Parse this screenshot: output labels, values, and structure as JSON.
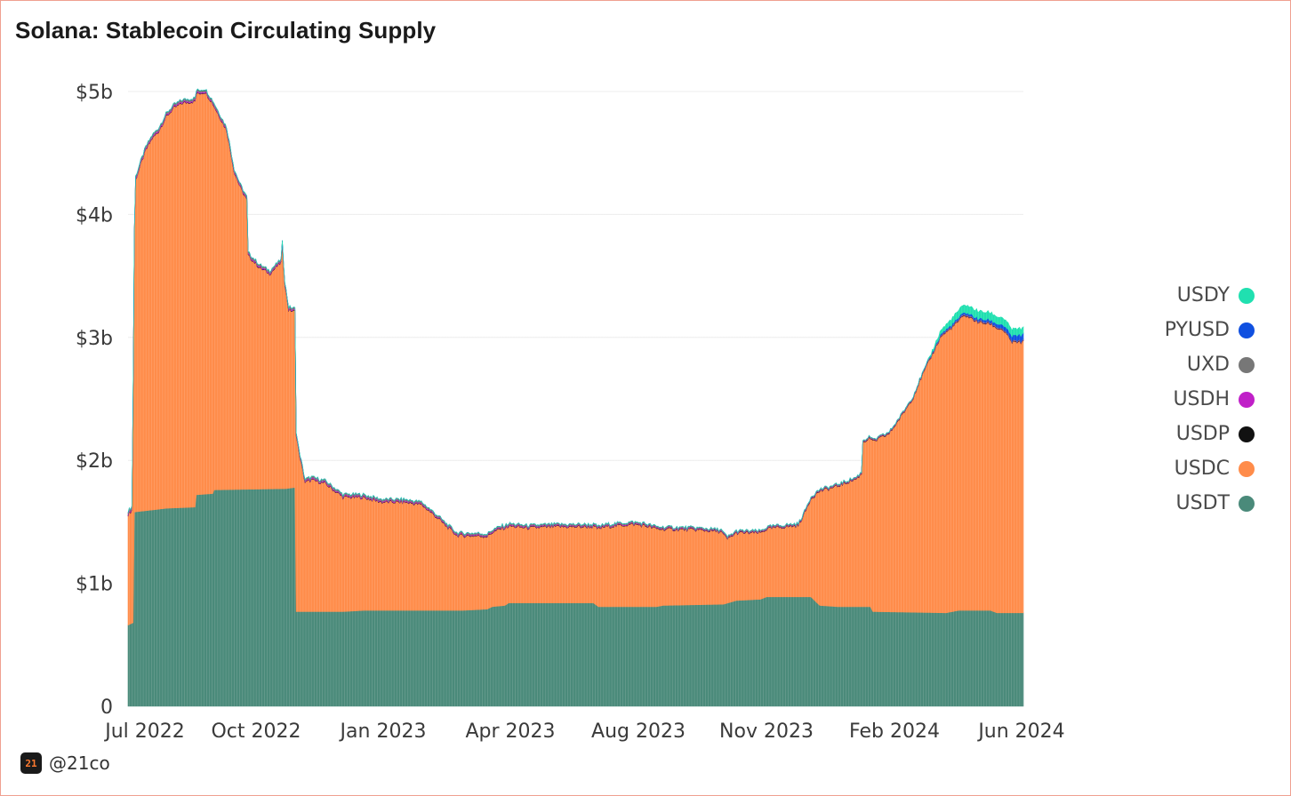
{
  "title": "Solana: Stablecoin Circulating Supply",
  "footer": {
    "logo_text": "21",
    "handle": "@21co"
  },
  "chart_data": {
    "type": "area",
    "stacked": true,
    "title": "Solana: Stablecoin Circulating Supply",
    "xlabel": "",
    "ylabel": "",
    "ylim": [
      0,
      5
    ],
    "y_unit": "billions USD",
    "y_ticks": [
      {
        "value": 0,
        "label": "0"
      },
      {
        "value": 1,
        "label": "$1b"
      },
      {
        "value": 2,
        "label": "$2b"
      },
      {
        "value": 3,
        "label": "$3b"
      },
      {
        "value": 4,
        "label": "$4b"
      },
      {
        "value": 5,
        "label": "$5b"
      }
    ],
    "x_ticks": [
      "Jul 2022",
      "Oct 2022",
      "Jan 2023",
      "Apr 2023",
      "Aug 2023",
      "Nov 2023",
      "Feb 2024",
      "Jun 2024"
    ],
    "grid": "horizontal",
    "legend_position": "right",
    "series": [
      {
        "name": "USDT",
        "color": "#4a8a7a",
        "points": [
          [
            "2022-06-28",
            0.66
          ],
          [
            "2022-07-02",
            0.68
          ],
          [
            "2022-07-03",
            1.58
          ],
          [
            "2022-07-20",
            1.6
          ],
          [
            "2022-07-28",
            1.61
          ],
          [
            "2022-08-20",
            1.62
          ],
          [
            "2022-08-21",
            1.72
          ],
          [
            "2022-09-03",
            1.73
          ],
          [
            "2022-09-04",
            1.76
          ],
          [
            "2022-10-31",
            1.77
          ],
          [
            "2022-11-07",
            1.78
          ],
          [
            "2022-11-08",
            0.77
          ],
          [
            "2022-12-15",
            0.77
          ],
          [
            "2023-01-01",
            0.78
          ],
          [
            "2023-03-20",
            0.78
          ],
          [
            "2023-04-08",
            0.79
          ],
          [
            "2023-04-12",
            0.81
          ],
          [
            "2023-04-22",
            0.82
          ],
          [
            "2023-04-25",
            0.84
          ],
          [
            "2023-07-01",
            0.84
          ],
          [
            "2023-07-05",
            0.81
          ],
          [
            "2023-08-20",
            0.81
          ],
          [
            "2023-08-25",
            0.82
          ],
          [
            "2023-10-12",
            0.83
          ],
          [
            "2023-10-22",
            0.86
          ],
          [
            "2023-11-10",
            0.87
          ],
          [
            "2023-11-15",
            0.89
          ],
          [
            "2023-12-20",
            0.89
          ],
          [
            "2023-12-27",
            0.82
          ],
          [
            "2024-01-10",
            0.81
          ],
          [
            "2024-02-05",
            0.81
          ],
          [
            "2024-02-07",
            0.77
          ],
          [
            "2024-04-05",
            0.76
          ],
          [
            "2024-04-15",
            0.78
          ],
          [
            "2024-05-10",
            0.78
          ],
          [
            "2024-05-15",
            0.76
          ],
          [
            "2024-06-05",
            0.76
          ]
        ]
      },
      {
        "name": "USDC",
        "color": "#ff8c4a",
        "points": [
          [
            "2022-06-28",
            0.9
          ],
          [
            "2022-07-01",
            0.92
          ],
          [
            "2022-07-02",
            1.85
          ],
          [
            "2022-07-04",
            2.7
          ],
          [
            "2022-07-08",
            2.82
          ],
          [
            "2022-07-12",
            2.93
          ],
          [
            "2022-07-17",
            3.02
          ],
          [
            "2022-07-22",
            3.07
          ],
          [
            "2022-07-28",
            3.18
          ],
          [
            "2022-08-03",
            3.25
          ],
          [
            "2022-08-10",
            3.29
          ],
          [
            "2022-08-20",
            3.3
          ],
          [
            "2022-08-21",
            3.26
          ],
          [
            "2022-08-28",
            3.27
          ],
          [
            "2022-09-03",
            3.17
          ],
          [
            "2022-09-04",
            3.12
          ],
          [
            "2022-09-14",
            2.92
          ],
          [
            "2022-09-20",
            2.58
          ],
          [
            "2022-09-25",
            2.45
          ],
          [
            "2022-09-30",
            2.35
          ],
          [
            "2022-10-01",
            1.9
          ],
          [
            "2022-10-10",
            1.8
          ],
          [
            "2022-10-18",
            1.75
          ],
          [
            "2022-10-27",
            1.84
          ],
          [
            "2022-10-28",
            1.98
          ],
          [
            "2022-10-30",
            1.66
          ],
          [
            "2022-11-02",
            1.45
          ],
          [
            "2022-11-07",
            1.43
          ],
          [
            "2022-11-08",
            1.44
          ],
          [
            "2022-11-10",
            1.3
          ],
          [
            "2022-11-15",
            1.05
          ],
          [
            "2022-11-20",
            1.07
          ],
          [
            "2022-12-01",
            1.04
          ],
          [
            "2022-12-15",
            0.93
          ],
          [
            "2022-12-30",
            0.92
          ],
          [
            "2023-01-15",
            0.88
          ],
          [
            "2023-02-01",
            0.88
          ],
          [
            "2023-02-15",
            0.86
          ],
          [
            "2023-03-01",
            0.74
          ],
          [
            "2023-03-05",
            0.7
          ],
          [
            "2023-03-15",
            0.61
          ],
          [
            "2023-04-01",
            0.6
          ],
          [
            "2023-04-08",
            0.59
          ],
          [
            "2023-04-20",
            0.63
          ],
          [
            "2023-05-10",
            0.61
          ],
          [
            "2023-06-01",
            0.62
          ],
          [
            "2023-07-01",
            0.62
          ],
          [
            "2023-07-10",
            0.65
          ],
          [
            "2023-08-01",
            0.67
          ],
          [
            "2023-08-10",
            0.66
          ],
          [
            "2023-08-25",
            0.62
          ],
          [
            "2023-09-20",
            0.61
          ],
          [
            "2023-10-10",
            0.59
          ],
          [
            "2023-10-15",
            0.52
          ],
          [
            "2023-10-22",
            0.55
          ],
          [
            "2023-11-10",
            0.54
          ],
          [
            "2023-11-20",
            0.56
          ],
          [
            "2023-12-10",
            0.58
          ],
          [
            "2023-12-15",
            0.68
          ],
          [
            "2023-12-20",
            0.8
          ],
          [
            "2023-12-27",
            0.93
          ],
          [
            "2024-01-05",
            0.96
          ],
          [
            "2024-01-15",
            1.0
          ],
          [
            "2024-01-25",
            1.04
          ],
          [
            "2024-01-29",
            1.08
          ],
          [
            "2024-01-30",
            1.34
          ],
          [
            "2024-02-05",
            1.37
          ],
          [
            "2024-02-07",
            1.38
          ],
          [
            "2024-02-20",
            1.45
          ],
          [
            "2024-03-01",
            1.6
          ],
          [
            "2024-03-10",
            1.75
          ],
          [
            "2024-03-15",
            1.88
          ],
          [
            "2024-03-25",
            2.1
          ],
          [
            "2024-04-01",
            2.25
          ],
          [
            "2024-04-05",
            2.28
          ],
          [
            "2024-04-12",
            2.33
          ],
          [
            "2024-04-20",
            2.4
          ],
          [
            "2024-05-01",
            2.34
          ],
          [
            "2024-05-10",
            2.33
          ],
          [
            "2024-05-20",
            2.3
          ],
          [
            "2024-05-27",
            2.2
          ],
          [
            "2024-06-05",
            2.2
          ]
        ]
      },
      {
        "name": "USDP",
        "color": "#111111",
        "points": [
          [
            "2022-06-28",
            0.004
          ],
          [
            "2024-06-05",
            0.004
          ]
        ]
      },
      {
        "name": "USDH",
        "color": "#c020c8",
        "points": [
          [
            "2022-06-28",
            0.01
          ],
          [
            "2023-01-01",
            0.008
          ],
          [
            "2024-06-05",
            0.003
          ]
        ]
      },
      {
        "name": "UXD",
        "color": "#777777",
        "points": [
          [
            "2022-06-28",
            0.015
          ],
          [
            "2023-01-01",
            0.012
          ],
          [
            "2024-06-05",
            0.005
          ]
        ]
      },
      {
        "name": "PYUSD",
        "color": "#1050e0",
        "points": [
          [
            "2022-06-28",
            0
          ],
          [
            "2024-03-15",
            0
          ],
          [
            "2024-04-01",
            0.01
          ],
          [
            "2024-05-10",
            0.02
          ],
          [
            "2024-06-05",
            0.05
          ]
        ]
      },
      {
        "name": "USDY",
        "color": "#20e0b0",
        "points": [
          [
            "2022-06-28",
            0
          ],
          [
            "2024-03-20",
            0
          ],
          [
            "2024-04-01",
            0.03
          ],
          [
            "2024-04-15",
            0.06
          ],
          [
            "2024-05-10",
            0.06
          ],
          [
            "2024-06-05",
            0.05
          ]
        ]
      }
    ],
    "legend_order": [
      "USDY",
      "PYUSD",
      "UXD",
      "USDH",
      "USDP",
      "USDC",
      "USDT"
    ]
  }
}
